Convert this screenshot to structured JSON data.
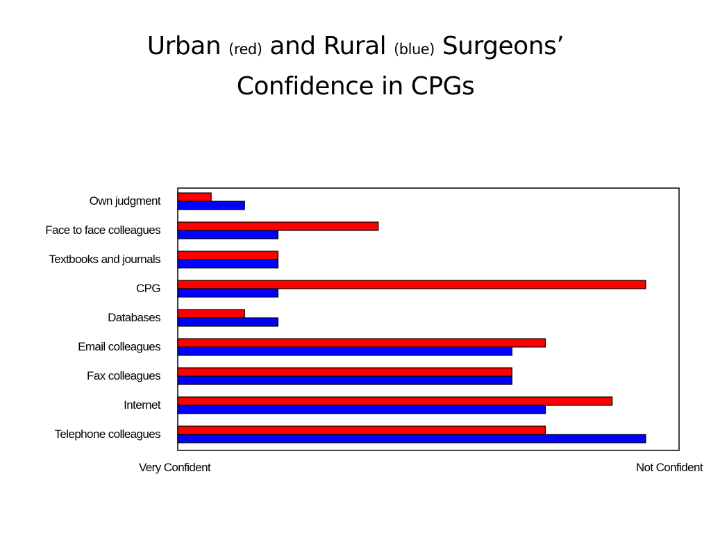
{
  "title": {
    "part1": "Urban",
    "part1_note": "(red)",
    "part2": "and Rural",
    "part2_note": "(blue)",
    "part3": "Surgeons’",
    "line2": "Confidence in CPGs"
  },
  "chart_data": {
    "type": "bar",
    "orientation": "horizontal",
    "categories": [
      "Own judgment",
      "Face to face colleagues",
      "Textbooks and journals",
      "CPG",
      "Databases",
      "Email colleagues",
      "Fax colleagues",
      "Internet",
      "Telephone colleagues"
    ],
    "series": [
      {
        "color": "#ff0000",
        "values": [
          1,
          6,
          3,
          14,
          2,
          11,
          10,
          13,
          11
        ]
      },
      {
        "color": "#0000ff",
        "values": [
          2,
          3,
          3,
          3,
          3,
          10,
          10,
          11,
          14
        ]
      }
    ],
    "xlim": [
      0,
      15
    ],
    "x_end_labels": {
      "left": "Very Confident",
      "right": "Not Confident"
    },
    "grid": false,
    "legend": "none"
  }
}
